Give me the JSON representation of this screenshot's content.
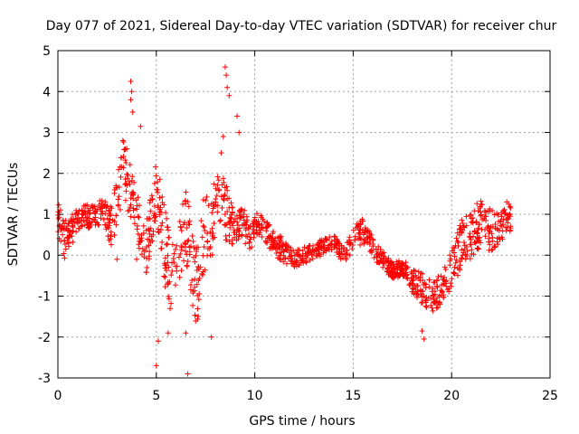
{
  "chart_data": {
    "type": "scatter",
    "title": "Day 077 of 2021, Sidereal Day-to-day VTEC variation (SDTVAR) for receiver chur",
    "xlabel": "GPS time / hours",
    "ylabel": "SDTVAR / TECUs",
    "xlim": [
      0,
      25
    ],
    "ylim": [
      -3,
      5
    ],
    "xticks": [
      0,
      5,
      10,
      15,
      20,
      25
    ],
    "yticks": [
      -3,
      -2,
      -1,
      0,
      1,
      2,
      3,
      4,
      5
    ],
    "grid": true,
    "marker": "+",
    "color": "#ff0000",
    "series": [
      {
        "name": "SDTVAR",
        "envelopes": [
          {
            "x": [
              0.0,
              0.3,
              0.6,
              1.0,
              1.3,
              1.7,
              2.0,
              2.3,
              2.7,
              3.0,
              3.3,
              3.6,
              3.9,
              4.2,
              4.5,
              4.8,
              5.0,
              5.3,
              5.6,
              5.9,
              6.2,
              6.5,
              6.8,
              7.1,
              7.4,
              7.7,
              8.0,
              8.3,
              8.6,
              8.9,
              9.2,
              9.5,
              9.8,
              10.1,
              10.5,
              11.0,
              11.5,
              12.0,
              12.5,
              13.0,
              13.5,
              14.0,
              14.5,
              15.0,
              15.5,
              16.0,
              16.5,
              17.0,
              17.5,
              18.0,
              18.5,
              19.0,
              19.5,
              20.0,
              20.5,
              21.0,
              21.5,
              22.0,
              22.5,
              23.0
            ],
            "y": [
              0.9,
              0.4,
              0.5,
              0.9,
              1.0,
              0.9,
              1.0,
              1.1,
              0.7,
              1.3,
              2.1,
              1.8,
              1.3,
              0.5,
              0.2,
              1.1,
              1.7,
              0.6,
              -0.3,
              -0.5,
              0.1,
              0.8,
              -0.2,
              -0.9,
              0.6,
              0.4,
              1.2,
              1.4,
              1.0,
              0.6,
              0.8,
              0.7,
              0.4,
              0.8,
              0.6,
              0.3,
              0.1,
              -0.1,
              0.0,
              0.1,
              0.2,
              0.3,
              0.0,
              0.4,
              0.6,
              0.2,
              -0.1,
              -0.4,
              -0.3,
              -0.6,
              -0.8,
              -1.0,
              -0.8,
              -0.4,
              0.3,
              0.5,
              0.8,
              0.6,
              0.7,
              0.9
            ],
            "spread": [
              0.4,
              0.5,
              0.4,
              0.3,
              0.3,
              0.3,
              0.3,
              0.3,
              0.5,
              0.6,
              0.7,
              0.8,
              0.6,
              0.6,
              0.7,
              0.8,
              0.7,
              0.9,
              1.0,
              0.9,
              0.8,
              0.9,
              1.0,
              1.0,
              0.9,
              1.0,
              0.7,
              0.8,
              0.7,
              0.5,
              0.4,
              0.4,
              0.3,
              0.3,
              0.3,
              0.3,
              0.3,
              0.2,
              0.2,
              0.2,
              0.2,
              0.2,
              0.2,
              0.3,
              0.3,
              0.3,
              0.2,
              0.2,
              0.2,
              0.3,
              0.4,
              0.4,
              0.4,
              0.5,
              0.6,
              0.6,
              0.6,
              0.5,
              0.4,
              0.3
            ],
            "density": 1400
          }
        ],
        "outliers": [
          {
            "x": 3.7,
            "y": 4.25
          },
          {
            "x": 3.75,
            "y": 4.0
          },
          {
            "x": 3.7,
            "y": 3.8
          },
          {
            "x": 3.8,
            "y": 3.5
          },
          {
            "x": 4.2,
            "y": 3.15
          },
          {
            "x": 3.3,
            "y": 2.8
          },
          {
            "x": 3.5,
            "y": 2.6
          },
          {
            "x": 5.0,
            "y": -2.7
          },
          {
            "x": 5.1,
            "y": -2.1
          },
          {
            "x": 6.6,
            "y": -2.9
          },
          {
            "x": 6.5,
            "y": -1.9
          },
          {
            "x": 8.5,
            "y": 4.6
          },
          {
            "x": 8.55,
            "y": 4.4
          },
          {
            "x": 8.6,
            "y": 4.1
          },
          {
            "x": 8.7,
            "y": 3.9
          },
          {
            "x": 9.1,
            "y": 3.4
          },
          {
            "x": 9.2,
            "y": 3.0
          },
          {
            "x": 8.4,
            "y": 2.9
          },
          {
            "x": 8.3,
            "y": 2.5
          },
          {
            "x": 3.0,
            "y": -0.1
          },
          {
            "x": 4.0,
            "y": -0.1
          },
          {
            "x": 5.6,
            "y": -1.9
          },
          {
            "x": 7.8,
            "y": -2.0
          },
          {
            "x": 18.6,
            "y": -2.05
          },
          {
            "x": 18.5,
            "y": -1.85
          },
          {
            "x": 22.8,
            "y": 1.3
          },
          {
            "x": 22.9,
            "y": 1.25
          }
        ]
      }
    ]
  }
}
